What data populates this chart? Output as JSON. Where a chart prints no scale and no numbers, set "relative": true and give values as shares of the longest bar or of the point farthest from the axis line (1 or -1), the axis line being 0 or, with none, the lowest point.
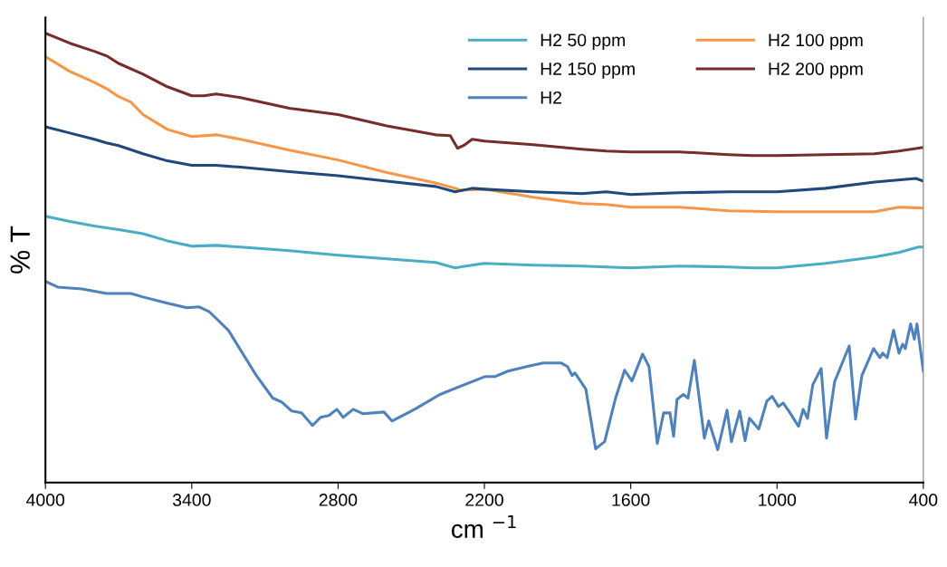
{
  "chart_data": {
    "type": "line",
    "relative": true,
    "xlabel": "cm $^{−1}$",
    "ylabel": "% T",
    "xlim": [
      4000,
      400
    ],
    "xticks": [
      4000,
      3400,
      2800,
      2200,
      1600,
      1000,
      400
    ],
    "legend": "top right",
    "grid": false,
    "marker": "none",
    "line_style": "solid",
    "series": [
      {
        "name": "H2 50 ppm",
        "color": "#4bacc6",
        "x": [
          4000,
          3900,
          3800,
          3700,
          3600,
          3500,
          3400,
          3300,
          3200,
          3000,
          2800,
          2600,
          2400,
          2320,
          2250,
          2200,
          2000,
          1800,
          1600,
          1400,
          1200,
          1100,
          1000,
          800,
          600,
          500,
          420,
          400
        ],
        "values": [
          0.593,
          0.581,
          0.571,
          0.563,
          0.554,
          0.538,
          0.526,
          0.528,
          0.524,
          0.516,
          0.506,
          0.498,
          0.49,
          0.478,
          0.484,
          0.488,
          0.484,
          0.482,
          0.478,
          0.482,
          0.48,
          0.478,
          0.478,
          0.488,
          0.502,
          0.512,
          0.524,
          0.524
        ]
      },
      {
        "name": "H2 100 ppm",
        "color": "#f79646",
        "x": [
          4000,
          3900,
          3800,
          3750,
          3700,
          3650,
          3600,
          3500,
          3400,
          3300,
          3200,
          3000,
          2800,
          2600,
          2400,
          2320,
          2300,
          2200,
          2000,
          1800,
          1700,
          1600,
          1400,
          1200,
          1000,
          800,
          600,
          500,
          400
        ],
        "values": [
          0.948,
          0.915,
          0.891,
          0.877,
          0.859,
          0.847,
          0.819,
          0.786,
          0.77,
          0.774,
          0.764,
          0.74,
          0.718,
          0.69,
          0.667,
          0.655,
          0.651,
          0.653,
          0.635,
          0.621,
          0.619,
          0.613,
          0.613,
          0.605,
          0.603,
          0.603,
          0.603,
          0.613,
          0.611
        ]
      },
      {
        "name": "H2 150 ppm",
        "color": "#1f497d",
        "x": [
          4000,
          3900,
          3800,
          3750,
          3700,
          3600,
          3500,
          3400,
          3300,
          3200,
          3000,
          2800,
          2600,
          2400,
          2320,
          2250,
          2200,
          2000,
          1800,
          1700,
          1600,
          1400,
          1200,
          1000,
          800,
          600,
          430,
          400
        ],
        "values": [
          0.792,
          0.778,
          0.764,
          0.756,
          0.75,
          0.732,
          0.716,
          0.706,
          0.706,
          0.702,
          0.692,
          0.683,
          0.671,
          0.659,
          0.647,
          0.655,
          0.653,
          0.647,
          0.643,
          0.647,
          0.641,
          0.645,
          0.647,
          0.647,
          0.655,
          0.669,
          0.677,
          0.671
        ]
      },
      {
        "name": "H2 200 ppm",
        "color": "#772c2a",
        "x": [
          4000,
          3900,
          3800,
          3750,
          3700,
          3600,
          3500,
          3400,
          3350,
          3300,
          3200,
          3000,
          2800,
          2600,
          2400,
          2340,
          2310,
          2280,
          2250,
          2200,
          2000,
          1800,
          1700,
          1600,
          1500,
          1400,
          1200,
          1100,
          1000,
          800,
          600,
          500,
          400
        ],
        "values": [
          1.0,
          0.978,
          0.96,
          0.95,
          0.933,
          0.909,
          0.881,
          0.861,
          0.861,
          0.865,
          0.857,
          0.833,
          0.819,
          0.794,
          0.774,
          0.772,
          0.744,
          0.752,
          0.764,
          0.76,
          0.752,
          0.742,
          0.738,
          0.736,
          0.736,
          0.736,
          0.73,
          0.728,
          0.728,
          0.73,
          0.732,
          0.738,
          0.746
        ]
      },
      {
        "name": "H2",
        "color": "#4f81bd",
        "x": [
          4000,
          3950,
          3850,
          3750,
          3650,
          3600,
          3500,
          3420,
          3370,
          3330,
          3250,
          3135,
          3068,
          3031,
          2990,
          2950,
          2905,
          2872,
          2838,
          2805,
          2779,
          2738,
          2697,
          2612,
          2579,
          2486,
          2382,
          2300,
          2196,
          2155,
          2104,
          2011,
          1959,
          1885,
          1859,
          1840,
          1829,
          1784,
          1744,
          1707,
          1662,
          1625,
          1595,
          1551,
          1525,
          1491,
          1465,
          1439,
          1424,
          1410,
          1384,
          1365,
          1339,
          1298,
          1280,
          1243,
          1205,
          1187,
          1153,
          1131,
          1113,
          1075,
          1042,
          1020,
          994,
          975,
          949,
          912,
          893,
          875,
          853,
          819,
          797,
          764,
          704,
          678,
          652,
          604,
          578,
          567,
          548,
          522,
          500,
          485,
          474,
          452,
          437,
          426,
          400
        ],
        "values": [
          0.448,
          0.435,
          0.431,
          0.421,
          0.421,
          0.413,
          0.399,
          0.389,
          0.391,
          0.381,
          0.339,
          0.238,
          0.188,
          0.179,
          0.159,
          0.155,
          0.127,
          0.145,
          0.149,
          0.163,
          0.145,
          0.163,
          0.153,
          0.157,
          0.137,
          0.163,
          0.196,
          0.214,
          0.236,
          0.236,
          0.248,
          0.26,
          0.266,
          0.266,
          0.258,
          0.238,
          0.244,
          0.208,
          0.075,
          0.091,
          0.188,
          0.25,
          0.226,
          0.286,
          0.258,
          0.087,
          0.155,
          0.155,
          0.103,
          0.185,
          0.196,
          0.188,
          0.272,
          0.099,
          0.137,
          0.073,
          0.161,
          0.091,
          0.159,
          0.093,
          0.143,
          0.119,
          0.181,
          0.192,
          0.169,
          0.177,
          0.157,
          0.125,
          0.163,
          0.143,
          0.218,
          0.254,
          0.099,
          0.224,
          0.304,
          0.141,
          0.238,
          0.298,
          0.278,
          0.288,
          0.278,
          0.339,
          0.288,
          0.308,
          0.298,
          0.353,
          0.319,
          0.353,
          0.248
        ]
      }
    ]
  }
}
